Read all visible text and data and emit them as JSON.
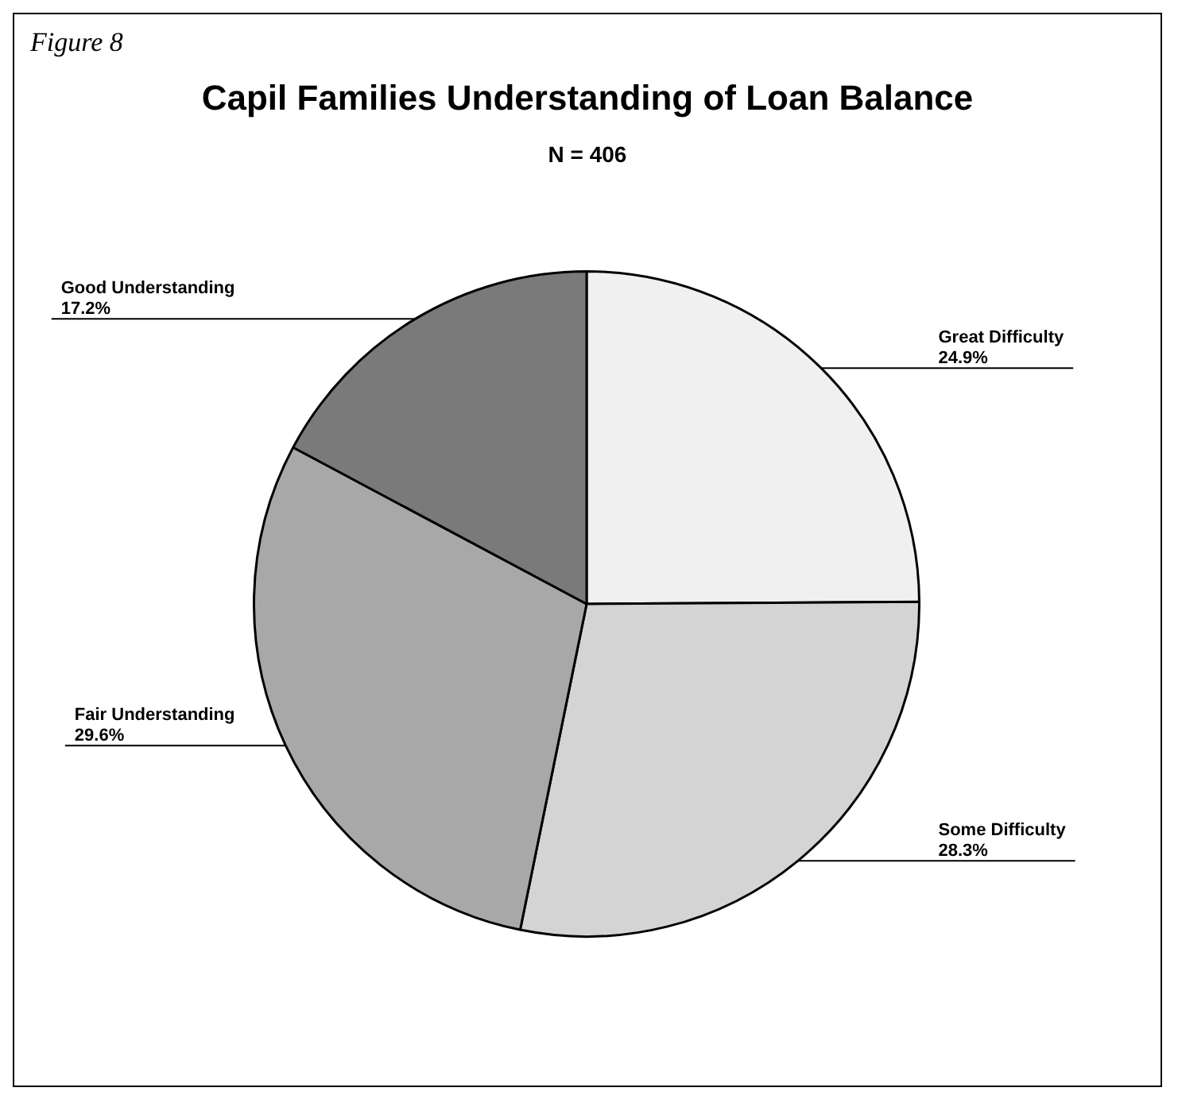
{
  "chart_data": {
    "type": "pie",
    "title": "Capil Families Understanding of Loan Balance",
    "subtitle": "N = 406",
    "annotations": [
      "Figure 8"
    ],
    "categories": [
      "Great Difficulty",
      "Some Difficulty",
      "Fair Understanding",
      "Good Understanding"
    ],
    "values": [
      24.9,
      28.3,
      29.6,
      17.2
    ],
    "value_labels": [
      "24.9%",
      "28.3%",
      "29.6%",
      "17.2%"
    ],
    "colors": [
      "#f0f0f0",
      "#d4d4d4",
      "#a8a8a8",
      "#7a7a7a"
    ],
    "legend": false
  }
}
